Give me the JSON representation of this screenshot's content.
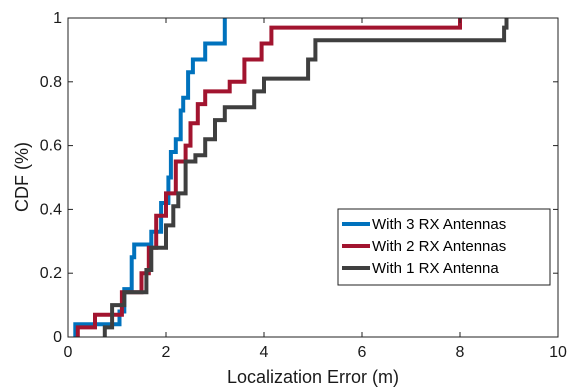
{
  "chart_data": {
    "type": "line",
    "title": "",
    "xlabel": "Localization Error (m)",
    "ylabel": "CDF (%)",
    "xlim": [
      0,
      10
    ],
    "ylim": [
      0,
      1
    ],
    "xticks": [
      0,
      2,
      4,
      6,
      8,
      10
    ],
    "yticks": [
      0,
      0.2,
      0.4,
      0.6,
      0.8,
      1
    ],
    "ytick_labels": [
      "0",
      "0.2",
      "0.4",
      "0.6",
      "0.8",
      "1"
    ],
    "grid": false,
    "legend_position": "lower-right",
    "step": true,
    "series": [
      {
        "name": "With 3 RX Antennas",
        "color": "#0072bd",
        "x": [
          0.15,
          0.6,
          1.05,
          1.15,
          1.3,
          1.35,
          1.7,
          1.9,
          2.05,
          2.1,
          2.2,
          2.3,
          2.35,
          2.45,
          2.55,
          2.8,
          3.2
        ],
        "y": [
          0.04,
          0.04,
          0.08,
          0.15,
          0.25,
          0.29,
          0.33,
          0.42,
          0.5,
          0.58,
          0.62,
          0.71,
          0.75,
          0.83,
          0.87,
          0.92,
          1.0
        ]
      },
      {
        "name": "With 2 RX Antennas",
        "color": "#a2142f",
        "x": [
          0.2,
          0.55,
          1.1,
          1.5,
          1.65,
          1.8,
          2.0,
          2.2,
          2.4,
          2.5,
          2.65,
          2.8,
          3.3,
          3.6,
          3.95,
          4.15,
          8.0
        ],
        "y": [
          0.03,
          0.07,
          0.14,
          0.2,
          0.28,
          0.38,
          0.45,
          0.55,
          0.6,
          0.67,
          0.73,
          0.77,
          0.8,
          0.87,
          0.92,
          0.97,
          1.0
        ]
      },
      {
        "name": "With 1 RX Antenna",
        "color": "#3f3f3f",
        "x": [
          0.75,
          0.9,
          1.15,
          1.6,
          1.7,
          2.0,
          2.15,
          2.25,
          2.4,
          2.6,
          2.8,
          3.0,
          3.2,
          3.8,
          4.0,
          4.9,
          5.05,
          8.9,
          8.95
        ],
        "y": [
          0.03,
          0.1,
          0.14,
          0.21,
          0.28,
          0.35,
          0.41,
          0.45,
          0.55,
          0.57,
          0.62,
          0.68,
          0.72,
          0.77,
          0.81,
          0.87,
          0.93,
          0.97,
          1.0
        ]
      }
    ]
  }
}
